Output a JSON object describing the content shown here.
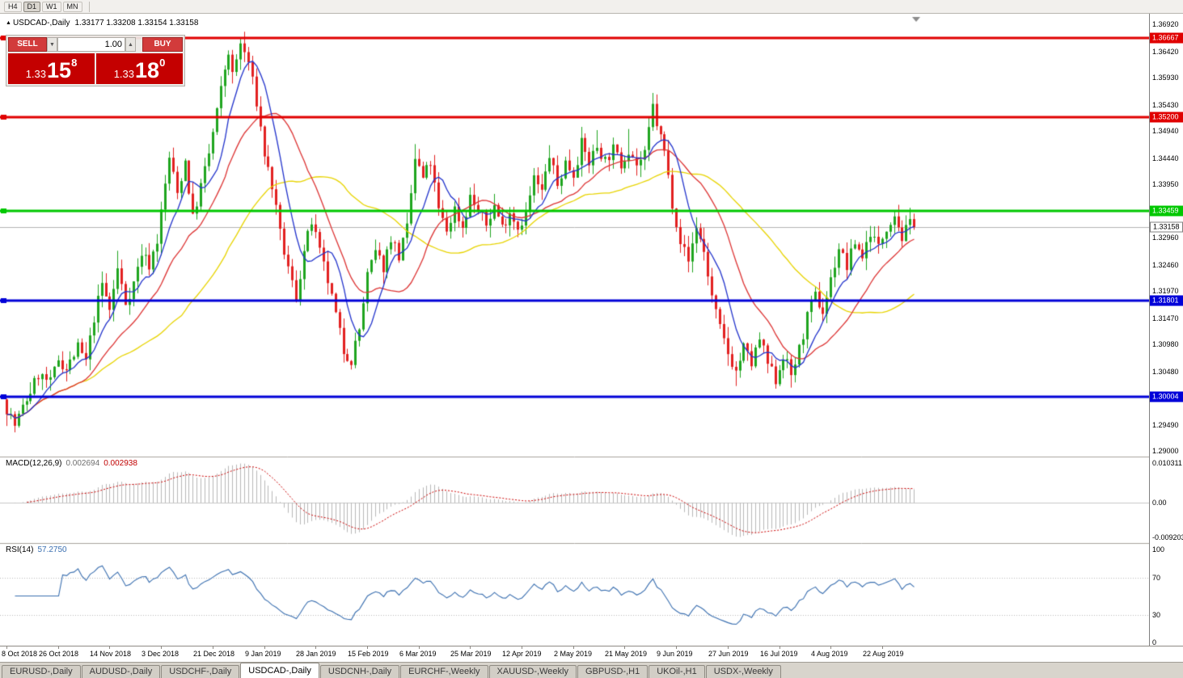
{
  "toolbar": {
    "timeframes": [
      "H4",
      "D1",
      "W1",
      "MN"
    ],
    "active_timeframe": "D1"
  },
  "chart_header": {
    "arrow_icon": "▲",
    "symbol": "USDCAD-,Daily",
    "ohlc": "1.33177 1.33208 1.33154 1.33158"
  },
  "trade_panel": {
    "sell_label": "SELL",
    "buy_label": "BUY",
    "volume": "1.00",
    "spinner_up": "▲",
    "spinner_down": "▼",
    "bid": {
      "prefix": "1.33",
      "big": "15",
      "sup": "8"
    },
    "ask": {
      "prefix": "1.33",
      "big": "18",
      "sup": "0"
    }
  },
  "indicators": {
    "macd": {
      "label": "MACD(12,26,9)",
      "value_main": "0.002694",
      "value_signal": "0.002938"
    },
    "rsi": {
      "label": "RSI(14)",
      "value": "57.2750"
    }
  },
  "chart_data": {
    "type": "candlestick",
    "symbol": "USDCAD",
    "timeframe": "Daily",
    "price_range": [
      1.289,
      1.37
    ],
    "candle_count": 230,
    "seed": 7,
    "current_price": 1.33158,
    "colors": {
      "up": "#1fa51f",
      "down": "#e22020",
      "ma_fast": "#2233cc",
      "ma_mid": "#dd3333",
      "ma_slow": "#e8d400",
      "macd_hist": "#b8b8b8",
      "macd_signal": "#cc0000",
      "rsi": "#3a6fb0",
      "current_line": "#b4b4b4"
    },
    "ma_periods": {
      "fast": 8,
      "mid": 20,
      "slow": 45
    },
    "hlines": [
      {
        "text": "1.36667",
        "price": 1.36667,
        "color": "#e00000",
        "width": 3
      },
      {
        "text": "1.35200",
        "price": 1.352,
        "color": "#e00000",
        "width": 3
      },
      {
        "text": "1.33459",
        "price": 1.33459,
        "color": "#00c800",
        "width": 3
      },
      {
        "text": "1.31801",
        "price": 1.31801,
        "color": "#0000d8",
        "width": 3
      },
      {
        "text": "1.30004",
        "price": 1.30004,
        "color": "#0000d8",
        "width": 3
      }
    ],
    "current_price_tag": {
      "text": "1.33158",
      "price": 1.33158,
      "bg": "#ffffff",
      "fg": "#000000",
      "border": "#808080"
    },
    "price_axis_labels": [
      "1.36920",
      "1.36420",
      "1.35930",
      "1.35430",
      "1.34940",
      "1.34440",
      "1.33950",
      "1.32960",
      "1.32460",
      "1.31970",
      "1.31470",
      "1.30980",
      "1.30480",
      "1.29490",
      "1.29000"
    ],
    "dates": [
      "8 Oct 2018",
      "26 Oct 2018",
      "14 Nov 2018",
      "3 Dec 2018",
      "21 Dec 2018",
      "9 Jan 2019",
      "28 Jan 2019",
      "15 Feb 2019",
      "6 Mar 2019",
      "25 Mar 2019",
      "12 Apr 2019",
      "2 May 2019",
      "21 May 2019",
      "9 Jun 2019",
      "27 Jun 2019",
      "16 Jul 2019",
      "4 Aug 2019",
      "22 Aug 2019"
    ],
    "date_tick_step": 13,
    "anchors": [
      [
        0,
        1.298
      ],
      [
        2,
        1.2948
      ],
      [
        5,
        1.2996
      ],
      [
        8,
        1.3042
      ],
      [
        11,
        1.3026
      ],
      [
        13,
        1.3072
      ],
      [
        15,
        1.3052
      ],
      [
        18,
        1.3092
      ],
      [
        20,
        1.3066
      ],
      [
        22,
        1.3148
      ],
      [
        24,
        1.321
      ],
      [
        26,
        1.3162
      ],
      [
        28,
        1.3238
      ],
      [
        30,
        1.3176
      ],
      [
        32,
        1.3212
      ],
      [
        34,
        1.3268
      ],
      [
        36,
        1.3246
      ],
      [
        38,
        1.3292
      ],
      [
        41,
        1.3445
      ],
      [
        43,
        1.3378
      ],
      [
        45,
        1.344
      ],
      [
        47,
        1.3332
      ],
      [
        49,
        1.3392
      ],
      [
        51,
        1.3452
      ],
      [
        53,
        1.353
      ],
      [
        55,
        1.361
      ],
      [
        56,
        1.3642
      ],
      [
        57,
        1.3596
      ],
      [
        59,
        1.3656
      ],
      [
        61,
        1.3622
      ],
      [
        63,
        1.3548
      ],
      [
        65,
        1.3452
      ],
      [
        67,
        1.3392
      ],
      [
        69,
        1.3302
      ],
      [
        71,
        1.3238
      ],
      [
        73,
        1.3186
      ],
      [
        75,
        1.327
      ],
      [
        77,
        1.3326
      ],
      [
        79,
        1.3268
      ],
      [
        81,
        1.3216
      ],
      [
        83,
        1.3152
      ],
      [
        85,
        1.3086
      ],
      [
        87,
        1.307
      ],
      [
        89,
        1.3126
      ],
      [
        91,
        1.3226
      ],
      [
        93,
        1.3268
      ],
      [
        95,
        1.3242
      ],
      [
        97,
        1.3298
      ],
      [
        99,
        1.3262
      ],
      [
        101,
        1.3312
      ],
      [
        103,
        1.3442
      ],
      [
        105,
        1.3406
      ],
      [
        107,
        1.3436
      ],
      [
        109,
        1.3346
      ],
      [
        111,
        1.331
      ],
      [
        113,
        1.335
      ],
      [
        115,
        1.3316
      ],
      [
        117,
        1.3372
      ],
      [
        119,
        1.3346
      ],
      [
        121,
        1.332
      ],
      [
        123,
        1.3356
      ],
      [
        125,
        1.3316
      ],
      [
        127,
        1.3346
      ],
      [
        129,
        1.3316
      ],
      [
        131,
        1.334
      ],
      [
        133,
        1.3406
      ],
      [
        135,
        1.338
      ],
      [
        137,
        1.345
      ],
      [
        139,
        1.3392
      ],
      [
        141,
        1.3436
      ],
      [
        143,
        1.3416
      ],
      [
        145,
        1.347
      ],
      [
        147,
        1.3436
      ],
      [
        149,
        1.3466
      ],
      [
        151,
        1.344
      ],
      [
        153,
        1.346
      ],
      [
        155,
        1.3432
      ],
      [
        157,
        1.3462
      ],
      [
        159,
        1.3432
      ],
      [
        161,
        1.3448
      ],
      [
        163,
        1.354
      ],
      [
        164,
        1.3508
      ],
      [
        166,
        1.3456
      ],
      [
        168,
        1.3362
      ],
      [
        170,
        1.3292
      ],
      [
        172,
        1.3252
      ],
      [
        174,
        1.3318
      ],
      [
        176,
        1.327
      ],
      [
        178,
        1.3186
      ],
      [
        180,
        1.3126
      ],
      [
        182,
        1.3082
      ],
      [
        184,
        1.3048
      ],
      [
        186,
        1.3092
      ],
      [
        188,
        1.3062
      ],
      [
        190,
        1.3108
      ],
      [
        192,
        1.3062
      ],
      [
        194,
        1.3032
      ],
      [
        196,
        1.3078
      ],
      [
        198,
        1.3042
      ],
      [
        200,
        1.3088
      ],
      [
        202,
        1.3148
      ],
      [
        204,
        1.3188
      ],
      [
        206,
        1.3158
      ],
      [
        208,
        1.3218
      ],
      [
        210,
        1.3278
      ],
      [
        212,
        1.3242
      ],
      [
        214,
        1.3288
      ],
      [
        216,
        1.3262
      ],
      [
        218,
        1.3308
      ],
      [
        220,
        1.3278
      ],
      [
        222,
        1.3318
      ],
      [
        224,
        1.3342
      ],
      [
        226,
        1.3296
      ],
      [
        228,
        1.3322
      ],
      [
        229,
        1.33158
      ]
    ],
    "wick_overrides": {
      "28": {
        "high": 1.3272
      },
      "41": {
        "high": 1.3456
      },
      "59": {
        "high": 1.36668
      },
      "73": {
        "low": 1.3176
      },
      "77": {
        "high": 1.3333
      },
      "86": {
        "low": 1.3066
      },
      "103": {
        "high": 1.347
      },
      "137": {
        "high": 1.3468
      },
      "145": {
        "high": 1.3502
      },
      "149": {
        "high": 1.3496
      },
      "157": {
        "high": 1.3498
      },
      "163": {
        "high": 1.3565
      },
      "184": {
        "low": 1.3021
      },
      "194": {
        "low": 1.3016
      },
      "198": {
        "low": 1.3018
      },
      "224": {
        "high": 1.3346
      }
    },
    "macd": {
      "axis": [
        {
          "text": "0.010311",
          "value": 0.010311
        },
        {
          "text": "0.00",
          "value": 0
        },
        {
          "text": "-0.009203",
          "value": -0.009203
        }
      ]
    },
    "rsi": {
      "axis": [
        {
          "text": "100",
          "value": 100
        },
        {
          "text": "70",
          "value": 70
        },
        {
          "text": "30",
          "value": 30
        },
        {
          "text": "0",
          "value": 0
        }
      ],
      "levels": [
        70,
        30
      ]
    }
  },
  "tabs": {
    "items": [
      "EURUSD-,Daily",
      "AUDUSD-,Daily",
      "USDCHF-,Daily",
      "USDCAD-,Daily",
      "USDCNH-,Daily",
      "EURCHF-,Weekly",
      "XAUUSD-,Weekly",
      "GBPUSD-,H1",
      "UKOil-,H1",
      "USDX-,Weekly"
    ],
    "active_index": 3
  }
}
